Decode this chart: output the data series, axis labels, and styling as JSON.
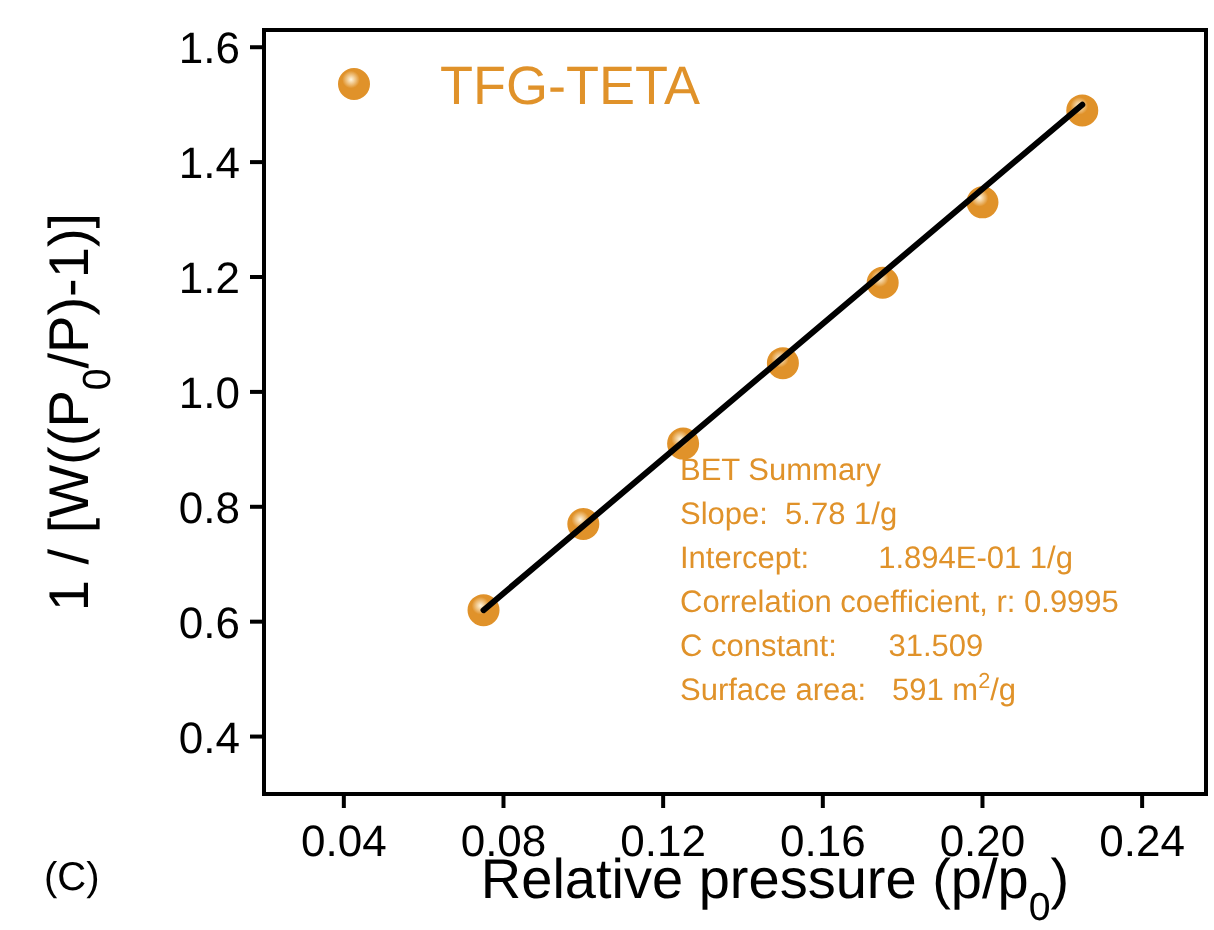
{
  "chart_data": {
    "type": "scatter",
    "xlabel": "Relative pressure (p/p$_{0}$)",
    "ylabel": "1 / [W((P$_{0}$/P)-1)]",
    "xlim": [
      0.02,
      0.256
    ],
    "xticks": [
      {
        "value": 0.04,
        "label": "0.04"
      },
      {
        "value": 0.08,
        "label": "0.08"
      },
      {
        "value": 0.12,
        "label": "0.12"
      },
      {
        "value": 0.16,
        "label": "0.16"
      },
      {
        "value": 0.2,
        "label": "0.20"
      },
      {
        "value": 0.24,
        "label": "0.24"
      }
    ],
    "ylim": [
      0.3,
      1.63
    ],
    "yticks": [
      {
        "value": 0.4,
        "label": "0.4"
      },
      {
        "value": 0.6,
        "label": "0.6"
      },
      {
        "value": 0.8,
        "label": "0.8"
      },
      {
        "value": 1.0,
        "label": "1.0"
      },
      {
        "value": 1.2,
        "label": "1.2"
      },
      {
        "value": 1.4,
        "label": "1.4"
      },
      {
        "value": 1.6,
        "label": "1.6"
      }
    ],
    "grid": false,
    "legend": "top left",
    "marker": "circle",
    "series": [
      {
        "name": "TFG-TETA",
        "color": "#e0922a",
        "x": [
          0.075,
          0.1,
          0.125,
          0.15,
          0.175,
          0.2,
          0.225
        ],
        "values": [
          0.62,
          0.77,
          0.91,
          1.05,
          1.19,
          1.33,
          1.49
        ]
      },
      {
        "type": "line",
        "color": "#000000",
        "x": [
          0.075,
          0.225
        ],
        "values": [
          0.62,
          1.5
        ],
        "marker": "none",
        "line_style": "solid"
      }
    ],
    "annotations": [
      "BET Summary",
      "Slope:  5.78 1/g",
      "Intercept:        1.894E-01 1/g",
      "Correlation coefficient, r: 0.9995",
      "C constant:      31.509",
      "Surface area:   591 m$^{2}$/g",
      "(C)"
    ]
  }
}
